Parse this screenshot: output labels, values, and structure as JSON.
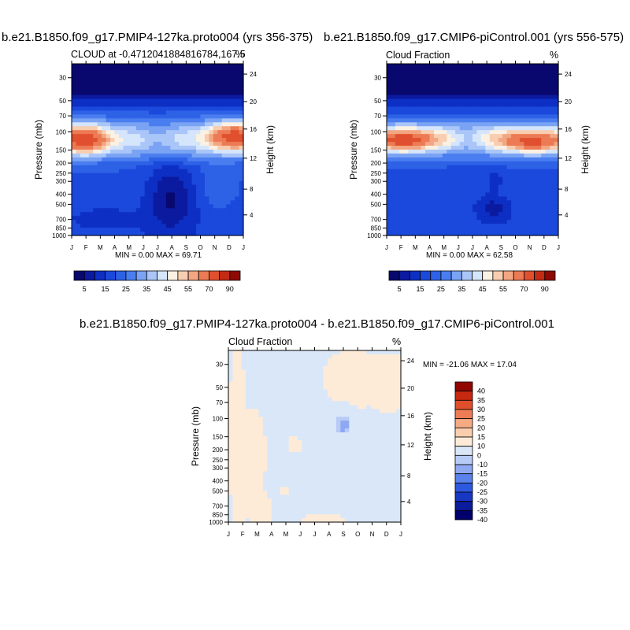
{
  "chart_data": [
    {
      "type": "heatmap",
      "title": "b.e21.B1850.f09_g17.PMIP4-127ka.proto004 (yrs 356-375)",
      "left_label": "CLOUD at -0.4712041884816784,167.5",
      "right_label": "%",
      "ylabel": "Pressure (mb)",
      "ylabel_right": "Height (km)",
      "x_ticks": [
        "J",
        "F",
        "M",
        "A",
        "M",
        "J",
        "J",
        "A",
        "S",
        "O",
        "N",
        "D",
        "J"
      ],
      "y_ticks": [
        "30",
        "50",
        "70",
        "100",
        "150",
        "200",
        "250",
        "300",
        "400",
        "500",
        "700",
        "850",
        "1000"
      ],
      "y_ticks_right": [
        "24",
        "20",
        "16",
        "12",
        "8",
        "4"
      ],
      "stats": "MIN =   0.00 MAX =  69.71",
      "colorbar_labels": [
        "5",
        "15",
        "25",
        "35",
        "45",
        "55",
        "70",
        "90"
      ],
      "levels": [
        5,
        10,
        15,
        20,
        25,
        30,
        35,
        40,
        45,
        50,
        55,
        60,
        70,
        80,
        90
      ]
    },
    {
      "type": "heatmap",
      "title": "b.e21.B1850.f09_g17.CMIP6-piControl.001 (yrs 556-575)",
      "left_label": "Cloud Fraction",
      "right_label": "%",
      "ylabel": "Pressure (mb)",
      "ylabel_right": "Height (km)",
      "x_ticks": [
        "J",
        "F",
        "M",
        "A",
        "M",
        "J",
        "J",
        "A",
        "S",
        "O",
        "N",
        "D",
        "J"
      ],
      "y_ticks": [
        "30",
        "50",
        "70",
        "100",
        "150",
        "200",
        "250",
        "300",
        "400",
        "500",
        "700",
        "850",
        "1000"
      ],
      "y_ticks_right": [
        "24",
        "20",
        "16",
        "12",
        "8",
        "4"
      ],
      "stats": "MIN =   0.00 MAX =  62.58",
      "colorbar_labels": [
        "5",
        "15",
        "25",
        "35",
        "45",
        "55",
        "70",
        "90"
      ],
      "levels": [
        5,
        10,
        15,
        20,
        25,
        30,
        35,
        40,
        45,
        50,
        55,
        60,
        70,
        80,
        90
      ]
    },
    {
      "type": "heatmap",
      "title": "b.e21.B1850.f09_g17.PMIP4-127ka.proto004 - b.e21.B1850.f09_g17.CMIP6-piControl.001",
      "left_label": "Cloud Fraction",
      "right_label": "%",
      "ylabel": "Pressure (mb)",
      "ylabel_right": "Height (km)",
      "x_ticks": [
        "J",
        "F",
        "M",
        "A",
        "M",
        "J",
        "J",
        "A",
        "S",
        "O",
        "N",
        "D",
        "J"
      ],
      "y_ticks": [
        "30",
        "50",
        "70",
        "100",
        "150",
        "200",
        "250",
        "300",
        "400",
        "500",
        "700",
        "850",
        "1000"
      ],
      "y_ticks_right": [
        "24",
        "20",
        "16",
        "12",
        "8",
        "4"
      ],
      "stats": "MIN = -21.06 MAX =  17.04",
      "colorbar_labels": [
        "40",
        "35",
        "30",
        "25",
        "20",
        "15",
        "10",
        "0",
        "-10",
        "-15",
        "-20",
        "-25",
        "-30",
        "-35",
        "-40"
      ],
      "levels": [
        -40,
        -35,
        -30,
        -25,
        -20,
        -15,
        -10,
        0,
        10,
        15,
        20,
        25,
        30,
        35,
        40
      ]
    }
  ],
  "colors": {
    "seq": [
      "#08086e",
      "#0b1a9e",
      "#0d2fc4",
      "#1b49dc",
      "#2e62e6",
      "#4a7ef0",
      "#7aa3f4",
      "#aac6f8",
      "#d5e5fb",
      "#fbf1e3",
      "#f8cdb0",
      "#f3a682",
      "#ec7a54",
      "#e0502e",
      "#c42b14",
      "#8e0a05"
    ],
    "div": [
      "#00006c",
      "#0a1c9c",
      "#1838c4",
      "#2d58e0",
      "#5a82ec",
      "#8ea8f2",
      "#b8cbf6",
      "#d9e7f8",
      "#fdebd8",
      "#fbcfae",
      "#f6aa84",
      "#ee7d56",
      "#e04f2c",
      "#c62810",
      "#920600"
    ]
  }
}
